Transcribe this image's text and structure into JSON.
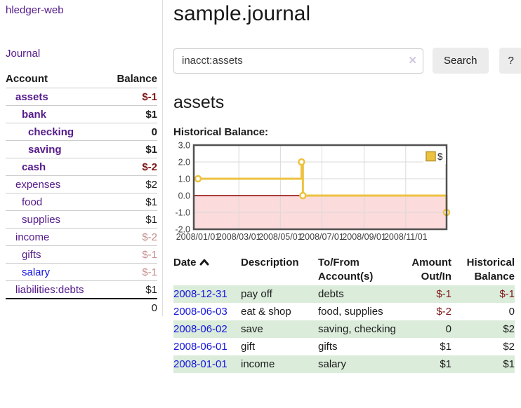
{
  "sidebar": {
    "app_title": "hledger-web",
    "nav": {
      "journal_label": "Journal"
    },
    "accounts_table": {
      "col_account": "Account",
      "col_balance": "Balance",
      "rows": [
        {
          "name": "assets",
          "indent": 0,
          "emph": true,
          "tone": "neg-strong",
          "link": "visited",
          "balance": "$-1"
        },
        {
          "name": "bank",
          "indent": 1,
          "emph": true,
          "tone": "",
          "link": "visited",
          "balance": "$1"
        },
        {
          "name": "checking",
          "indent": 2,
          "emph": true,
          "tone": "",
          "link": "visited",
          "balance": "0"
        },
        {
          "name": "saving",
          "indent": 2,
          "emph": true,
          "tone": "",
          "link": "visited",
          "balance": "$1"
        },
        {
          "name": "cash",
          "indent": 1,
          "emph": true,
          "tone": "neg-strong",
          "link": "visited",
          "balance": "$-2"
        },
        {
          "name": "expenses",
          "indent": 0,
          "emph": false,
          "tone": "",
          "link": "visited",
          "balance": "$2"
        },
        {
          "name": "food",
          "indent": 1,
          "emph": false,
          "tone": "",
          "link": "visited",
          "balance": "$1"
        },
        {
          "name": "supplies",
          "indent": 1,
          "emph": false,
          "tone": "",
          "link": "visited",
          "balance": "$1"
        },
        {
          "name": "income",
          "indent": 0,
          "emph": false,
          "tone": "neg-muted",
          "link": "visited",
          "balance": "$-2"
        },
        {
          "name": "gifts",
          "indent": 1,
          "emph": false,
          "tone": "neg-muted",
          "link": "visited",
          "balance": "$-1"
        },
        {
          "name": "salary",
          "indent": 1,
          "emph": false,
          "tone": "neg-muted",
          "link": "new",
          "balance": "$-1"
        },
        {
          "name": "liabilities:debts",
          "indent": 0,
          "emph": false,
          "tone": "",
          "link": "visited",
          "balance": "$1"
        }
      ],
      "total": "0"
    }
  },
  "header": {
    "title": "sample.journal",
    "search": {
      "value": "inacct:assets",
      "clear_icon": "✕",
      "button_label": "Search",
      "help_label": "?"
    }
  },
  "account_page": {
    "title": "assets",
    "chart_label": "Historical Balance:"
  },
  "chart_data": {
    "type": "line",
    "step": true,
    "title": "Historical Balance",
    "series": [
      {
        "name": "$",
        "x": [
          "2008-01-01",
          "2008-06-01",
          "2008-06-03",
          "2008-12-31"
        ],
        "values": [
          1,
          2,
          0,
          -1
        ]
      }
    ],
    "x_tick_labels": [
      "2008/01/01",
      "2008/03/01",
      "2008/05/01",
      "2008/07/01",
      "2008/09/01",
      "2008/11/01"
    ],
    "y_ticks": [
      3.0,
      2.0,
      1.0,
      0.0,
      -1.0,
      -2.0
    ],
    "ylim": [
      -2.0,
      3.0
    ],
    "xlim": [
      "2008-01-01",
      "2008-12-31"
    ],
    "grid": true,
    "legend_position": "top-right",
    "colors": {
      "series": "#edc240",
      "marker_fill": "#ffffff",
      "negative_region": "#fbdbdb",
      "zero_line": "#8b0000",
      "border": "#515151",
      "grid": "#d9d9d9",
      "axis_text": "#3f3f3f"
    }
  },
  "register": {
    "headers": {
      "date": "Date",
      "description": "Description",
      "account": "To/From Account(s)",
      "amount": "Amount Out/In",
      "balance": "Historical Balance"
    },
    "sort": {
      "column": "date",
      "direction": "asc"
    },
    "rows": [
      {
        "date": "2008-12-31",
        "description": "pay off",
        "accounts": "debts",
        "amount": "$-1",
        "balance": "$-1"
      },
      {
        "date": "2008-06-03",
        "description": "eat & shop",
        "accounts": "food, supplies",
        "amount": "$-2",
        "balance": "0"
      },
      {
        "date": "2008-06-02",
        "description": "save",
        "accounts": "saving, checking",
        "amount": "0",
        "balance": "$2"
      },
      {
        "date": "2008-06-01",
        "description": "gift",
        "accounts": "gifts",
        "amount": "$1",
        "balance": "$2"
      },
      {
        "date": "2008-01-01",
        "description": "income",
        "accounts": "salary",
        "amount": "$1",
        "balance": "$1"
      }
    ]
  },
  "colors": {
    "link_visited": "#551a8b",
    "link_new": "#1414e0",
    "negative_strong": "#7e1515",
    "negative_muted": "#c58b8b",
    "row_stripe": "#dbecdb",
    "button_bg": "#ececec"
  }
}
